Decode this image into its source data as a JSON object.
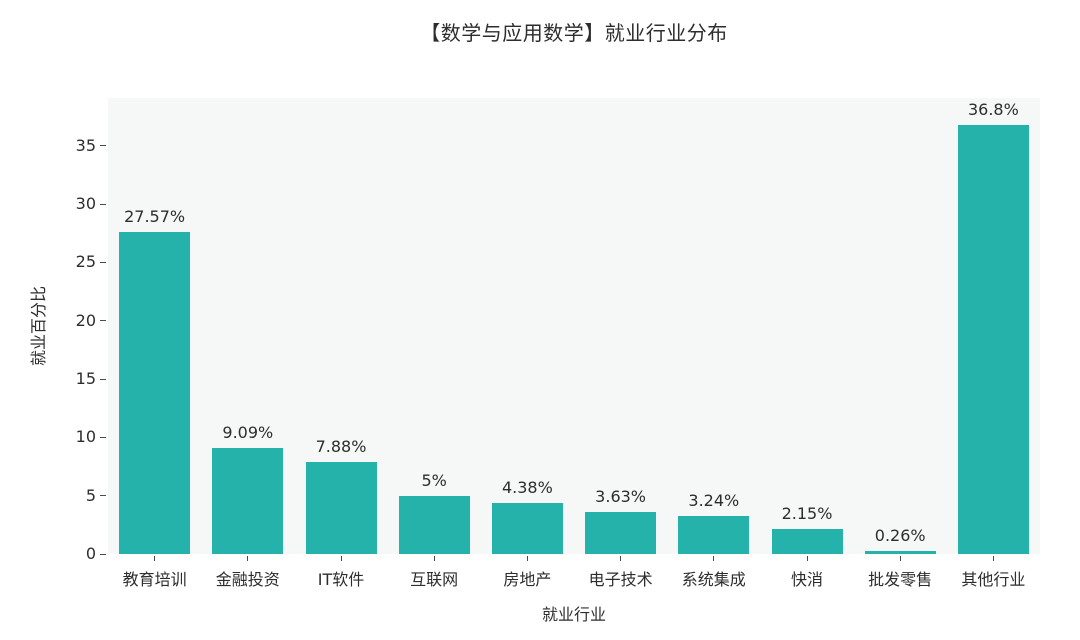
{
  "chart_data": {
    "type": "bar",
    "title": "【数学与应用数学】就业行业分布",
    "xlabel": "就业行业",
    "ylabel": "就业百分比",
    "categories": [
      "教育培训",
      "金融投资",
      "IT软件",
      "互联网",
      "房地产",
      "电子技术",
      "系统集成",
      "快消",
      "批发零售",
      "其他行业"
    ],
    "values": [
      27.57,
      9.09,
      7.88,
      5,
      4.38,
      3.63,
      3.24,
      2.15,
      0.26,
      36.8
    ],
    "bar_labels": [
      "27.57%",
      "9.09%",
      "7.88%",
      "5%",
      "4.38%",
      "3.63%",
      "3.24%",
      "2.15%",
      "0.26%",
      "36.8%"
    ],
    "yticks": [
      0,
      5,
      10,
      15,
      20,
      25,
      30,
      35
    ],
    "ylim": [
      0,
      39.1
    ],
    "grid": false,
    "legend_position": "none",
    "bar_color": "#25b2aa",
    "plot_background": "#f6f7f7",
    "text_color": "#2d2d2d"
  }
}
